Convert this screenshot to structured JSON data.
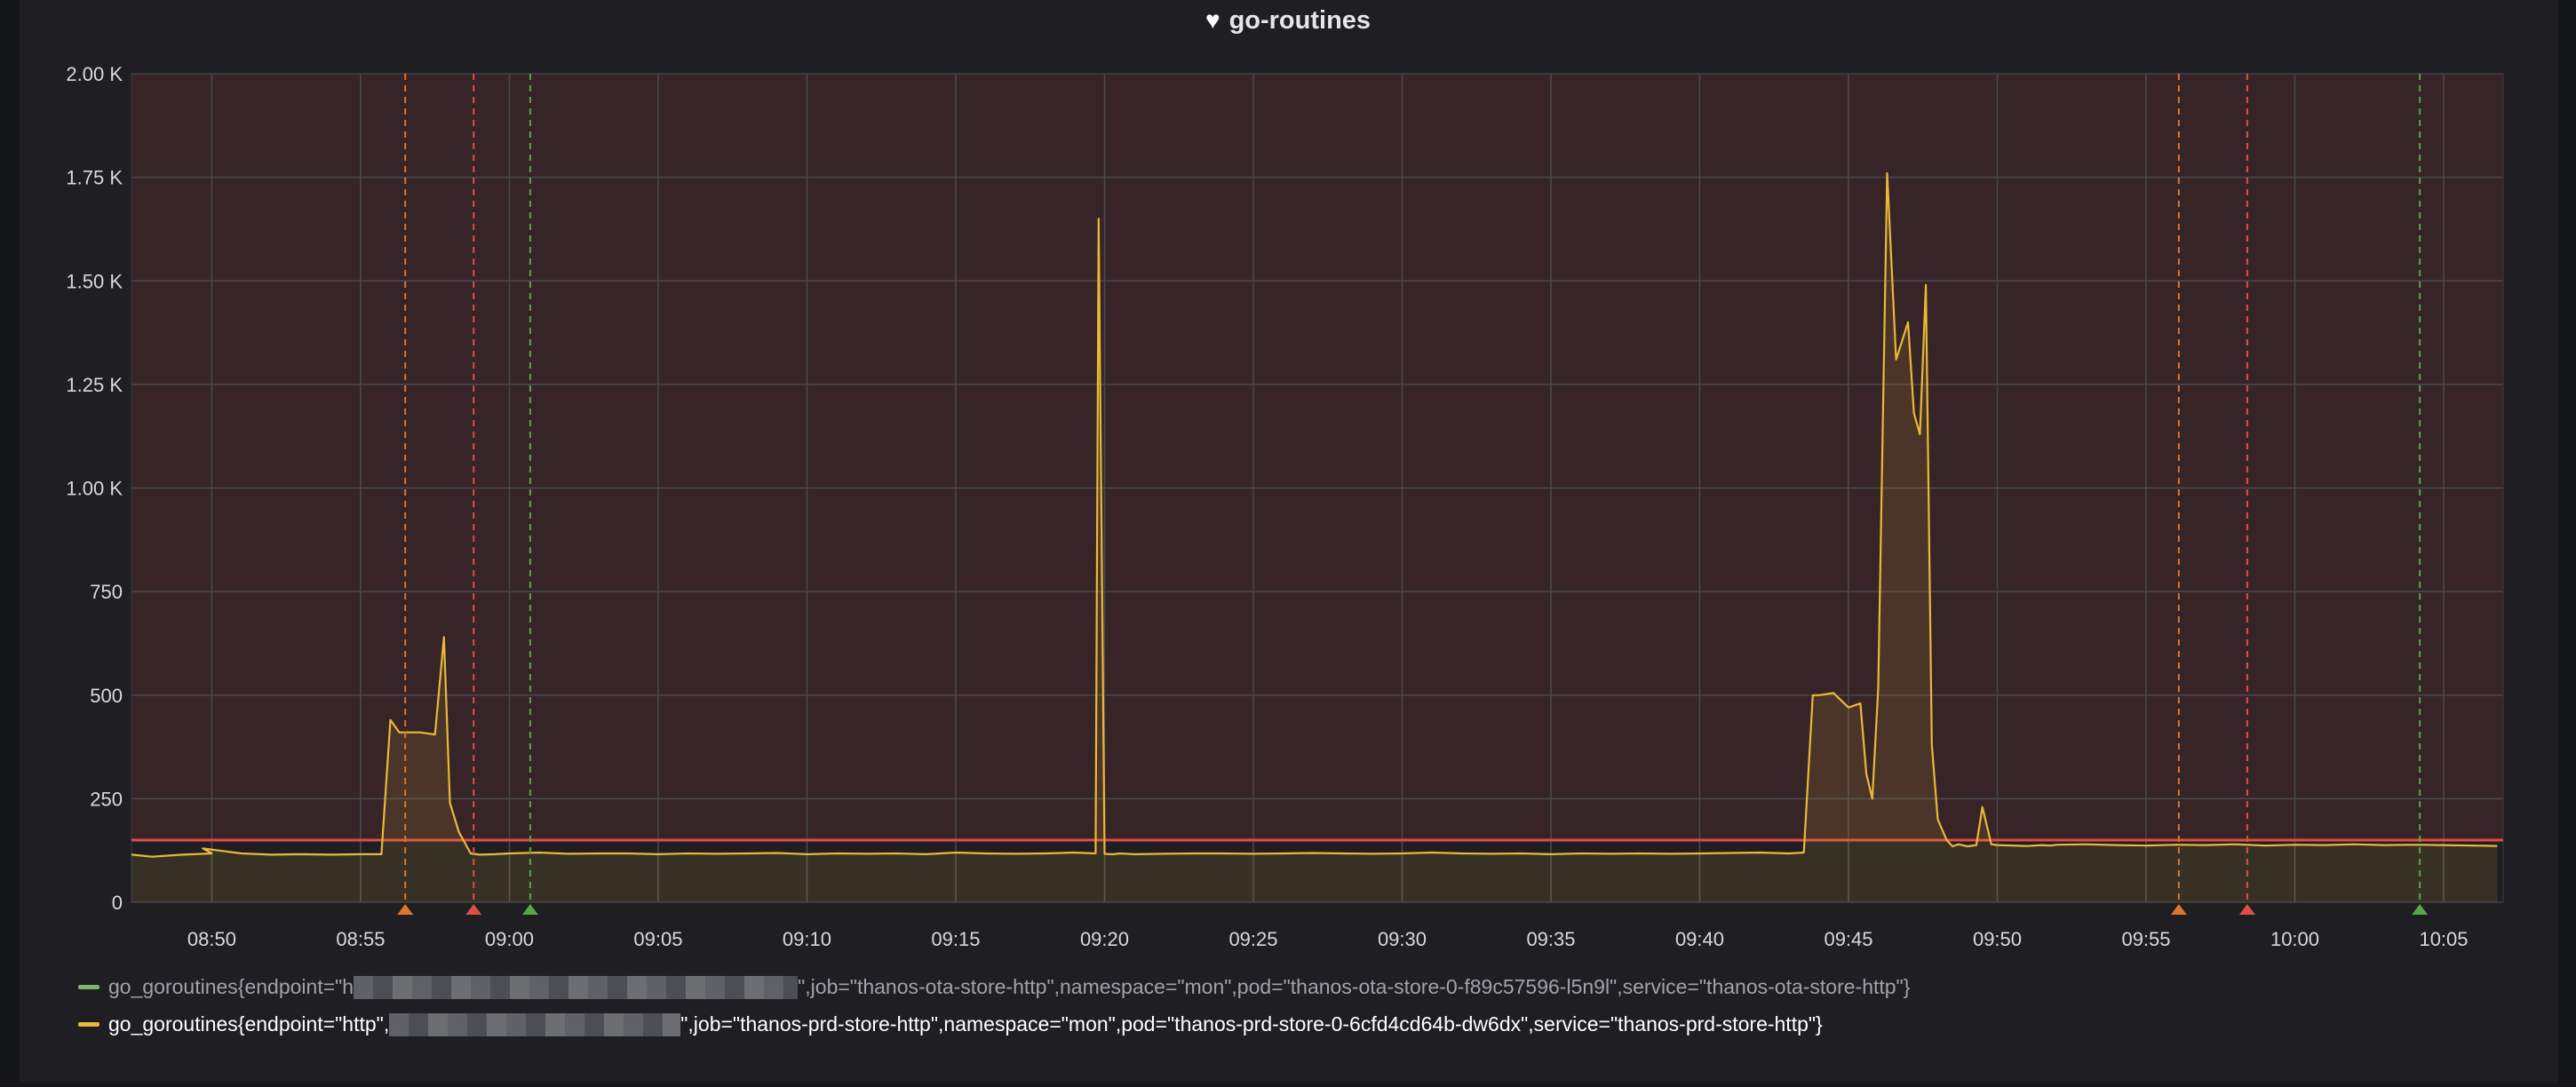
{
  "panel": {
    "title": "go-routines",
    "title_icon": "heart-icon"
  },
  "chart_data": {
    "type": "line",
    "title": "go-routines",
    "y_ticks": [
      "2.00 K",
      "1.75 K",
      "1.50 K",
      "1.25 K",
      "1.00 K",
      "750",
      "500",
      "250",
      "0"
    ],
    "ylim": [
      0,
      2000
    ],
    "x_ticks": [
      "08:50",
      "08:55",
      "09:00",
      "09:05",
      "09:10",
      "09:15",
      "09:20",
      "09:25",
      "09:30",
      "09:35",
      "09:40",
      "09:45",
      "09:50",
      "09:55",
      "10:00",
      "10:05"
    ],
    "x_range_minutes": [
      -2.7,
      77.0
    ],
    "x_unit": "minutes after 08:50",
    "grid": true,
    "threshold": {
      "value": 150,
      "color": "#e24d42",
      "fill": "rgba(226,77,66,0.12)"
    },
    "annotations": [
      {
        "time": "08:56.5",
        "color": "#e0752d"
      },
      {
        "time": "08:58.8",
        "color": "#e24d42"
      },
      {
        "time": "09:00.7",
        "color": "#56a64b"
      },
      {
        "time": "09:56.1",
        "color": "#e0752d"
      },
      {
        "time": "09:58.4",
        "color": "#e24d42"
      },
      {
        "time": "10:04.2",
        "color": "#56a64b"
      }
    ],
    "series": [
      {
        "name": "go_goroutines{endpoint=\"h[redacted]\",job=\"thanos-ota-store-http\",namespace=\"mon\",pod=\"thanos-ota-store-0-f89c57596-l5n9l\",service=\"thanos-ota-store-http\"}",
        "color": "#7eb26d",
        "x": [],
        "y": []
      },
      {
        "name": "go_goroutines{endpoint=\"http\",[redacted]\",job=\"thanos-prd-store-http\",namespace=\"mon\",pod=\"thanos-prd-store-0-6cfd4cd64b-dw6dx\",service=\"thanos-prd-store-http\"}",
        "color": "#eab839",
        "x": [
          -2.7,
          -2.0,
          -1.0,
          0.0,
          -0.3,
          1.0,
          2.0,
          3.0,
          4.0,
          5.0,
          5.7,
          6.0,
          6.3,
          7.0,
          7.5,
          7.8,
          8.0,
          8.3,
          8.7,
          9.0,
          9.5,
          10.0,
          11.0,
          12.0,
          13.0,
          14.0,
          15.0,
          16.0,
          17.0,
          18.0,
          19.0,
          20.0,
          21.0,
          22.0,
          23.0,
          24.0,
          25.0,
          26.0,
          27.0,
          28.0,
          29.0,
          29.7,
          29.8,
          30.0,
          30.2,
          30.3,
          30.5,
          31.0,
          32.0,
          33.0,
          34.0,
          35.0,
          36.0,
          37.0,
          38.0,
          39.0,
          40.0,
          41.0,
          42.0,
          43.0,
          44.0,
          45.0,
          46.0,
          47.0,
          48.0,
          49.0,
          50.0,
          51.0,
          52.0,
          53.0,
          53.5,
          53.8,
          54.0,
          54.5,
          55.0,
          55.4,
          55.6,
          55.8,
          56.0,
          56.3,
          56.6,
          57.0,
          57.2,
          57.4,
          57.6,
          57.8,
          58.0,
          58.3,
          58.5,
          58.7,
          59.0,
          59.3,
          59.5,
          59.8,
          60.0,
          61.0,
          61.5,
          61.8,
          62.0,
          63.0,
          64.0,
          65.0,
          66.0,
          67.0,
          68.0,
          69.0,
          70.0,
          71.0,
          72.0,
          73.0,
          74.0,
          75.0,
          76.0,
          76.8
        ],
        "y": [
          115,
          110,
          115,
          118,
          130,
          118,
          115,
          116,
          115,
          116,
          116,
          440,
          410,
          410,
          405,
          640,
          240,
          170,
          118,
          115,
          116,
          118,
          120,
          117,
          118,
          118,
          116,
          118,
          117,
          118,
          119,
          116,
          118,
          117,
          118,
          116,
          120,
          118,
          117,
          118,
          120,
          118,
          1650,
          117,
          116,
          116,
          118,
          116,
          117,
          118,
          118,
          117,
          118,
          119,
          118,
          117,
          118,
          120,
          118,
          117,
          118,
          116,
          118,
          117,
          118,
          117,
          118,
          119,
          120,
          118,
          120,
          500,
          500,
          505,
          470,
          480,
          310,
          250,
          520,
          1760,
          1310,
          1400,
          1180,
          1130,
          1490,
          380,
          200,
          150,
          135,
          140,
          135,
          138,
          230,
          140,
          138,
          136,
          138,
          137,
          139,
          140,
          138,
          137,
          139,
          138,
          140,
          137,
          139,
          138,
          140,
          138,
          139,
          138,
          137,
          136
        ]
      }
    ]
  },
  "legend": {
    "items": [
      {
        "prefix": "go_goroutines{endpoint=\"h",
        "suffix": "\",job=\"thanos-ota-store-http\",namespace=\"mon\",pod=\"thanos-ota-store-0-f89c57596-l5n9l\",service=\"thanos-ota-store-http\"}",
        "color": "#7eb26d"
      },
      {
        "prefix": "go_goroutines{endpoint=\"http\",",
        "suffix": "\",job=\"thanos-prd-store-http\",namespace=\"mon\",pod=\"thanos-prd-store-0-6cfd4cd64b-dw6dx\",service=\"thanos-prd-store-http\"}",
        "color": "#eab839"
      }
    ]
  }
}
